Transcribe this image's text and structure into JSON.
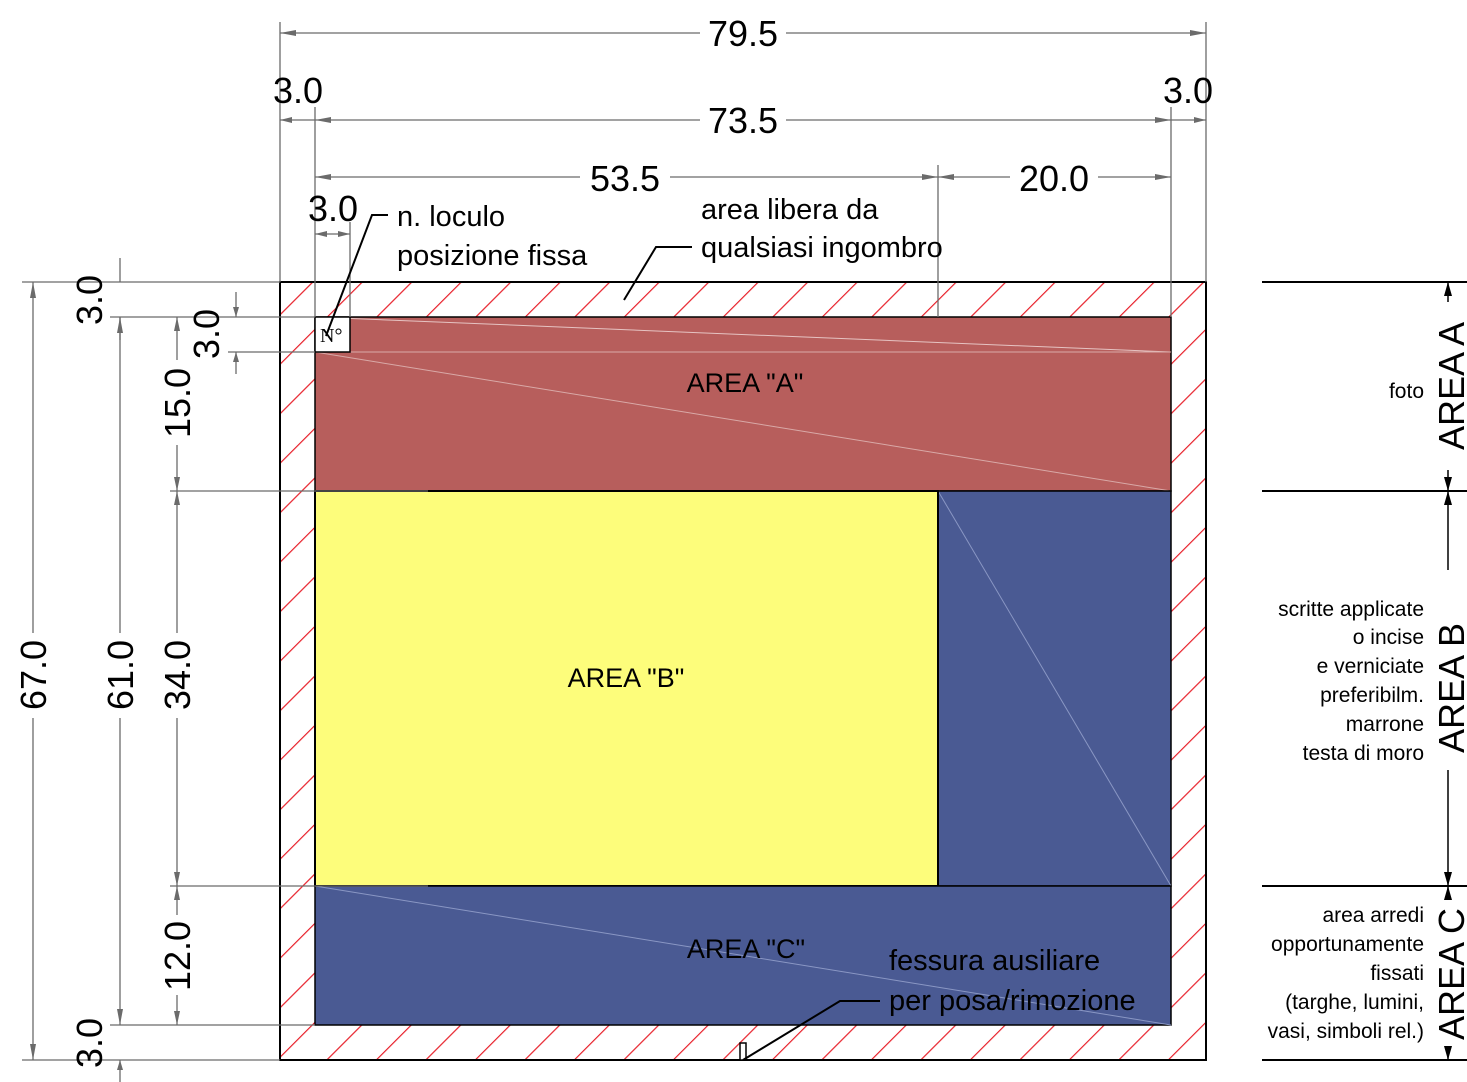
{
  "colors": {
    "area_a": "#b75e5c",
    "area_b": "#fdfd7b",
    "area_c": "#4a5a93",
    "hatch": "#e8202a",
    "dimension": "#6b6b6b"
  },
  "dimensions": {
    "total_width": "79.5",
    "left_margin": "3.0",
    "right_margin": "3.0",
    "inner_width": "73.5",
    "area_b_width": "53.5",
    "right_strip_width": "20.0",
    "number_box_width": "3.0",
    "total_height": "67.0",
    "inner_height": "61.0",
    "top_margin": "3.0",
    "bottom_margin": "3.0",
    "number_box_height": "3.0",
    "area_a_height": "15.0",
    "area_b_height": "34.0",
    "area_c_height": "12.0"
  },
  "labels": {
    "number_line1": "n. loculo",
    "number_line2": "posizione fissa",
    "free_line1": "area libera da",
    "free_line2": "qualsiasi ingombro",
    "slot_line1": "fessura ausiliare",
    "slot_line2": "per posa/rimozione",
    "number_symbol": "N°"
  },
  "areas": {
    "a": "AREA \"A\"",
    "b": "AREA \"B\"",
    "c": "AREA \"C\""
  },
  "side_panel": {
    "a_title": "AREA A",
    "b_title": "AREA B",
    "c_title": "AREA C",
    "a_notes": [
      "foto"
    ],
    "b_notes": [
      "scritte applicate",
      "o incise",
      "e verniciate",
      "preferibilm.",
      "marrone",
      "testa di moro"
    ],
    "c_notes": [
      "area arredi",
      "opportunamente",
      "fissati",
      "(targhe, lumini,",
      "vasi, simboli rel.)"
    ]
  }
}
